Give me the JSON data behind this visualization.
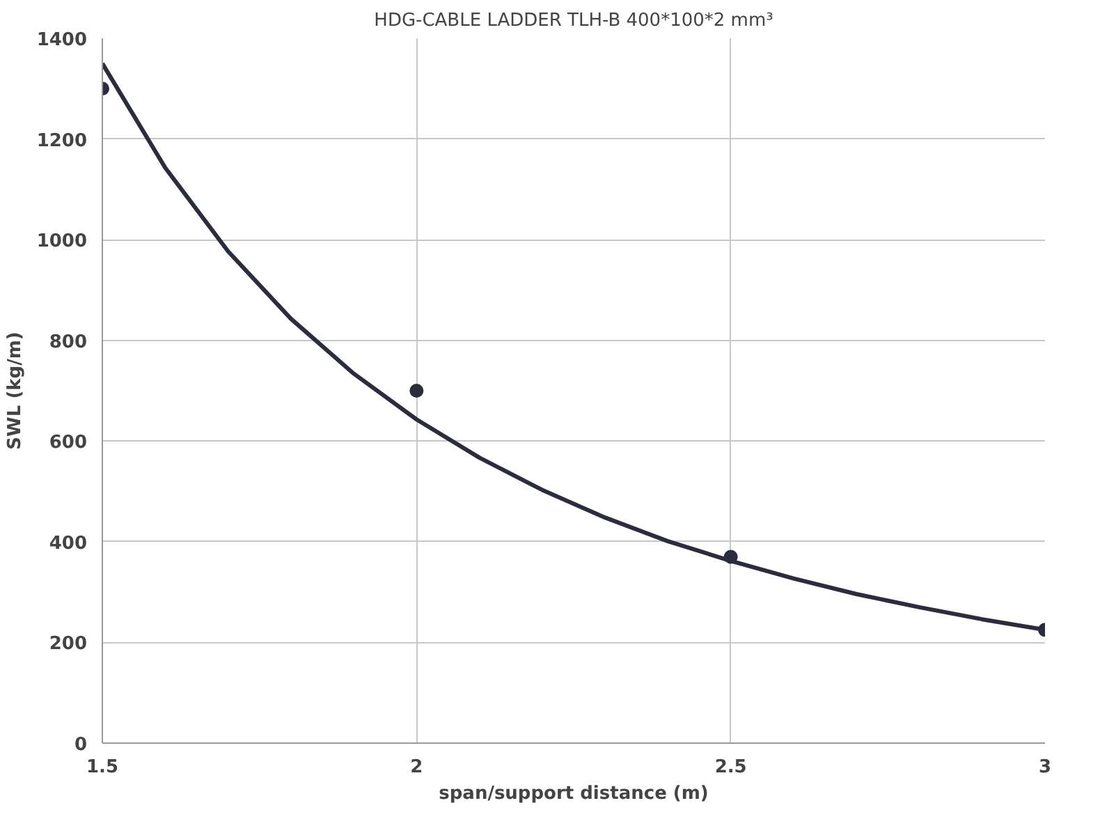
{
  "chart_data": {
    "type": "scatter",
    "title": "HDG-CABLE LADDER TLH-B 400*100*2 mm³",
    "xlabel": "span/support distance (m)",
    "ylabel": "SWL (kg/m)",
    "x": [
      1.5,
      2,
      2.5,
      3
    ],
    "series": [
      {
        "color": "#2b2c3e",
        "values": [
          1300,
          700,
          370,
          225
        ],
        "marker": "circle"
      },
      {
        "type": "line",
        "color": "#2b2c3e",
        "x": [
          1.5,
          1.6,
          1.7,
          1.8,
          1.9,
          2.0,
          2.1,
          2.2,
          2.3,
          2.4,
          2.5,
          2.6,
          2.7,
          2.8,
          2.9,
          3.0
        ],
        "values": [
          1350,
          1143,
          977,
          843,
          734,
          643,
          567,
          503,
          448,
          401,
          362,
          327,
          296,
          270,
          246,
          225
        ],
        "line_style": "solid"
      }
    ],
    "xlim": [
      1.5,
      3
    ],
    "xticks": [
      1.5,
      2,
      2.5,
      3
    ],
    "ylim": [
      0,
      1400
    ],
    "yticks": [
      0,
      200,
      400,
      600,
      800,
      1000,
      1200,
      1400
    ],
    "grid": true
  }
}
